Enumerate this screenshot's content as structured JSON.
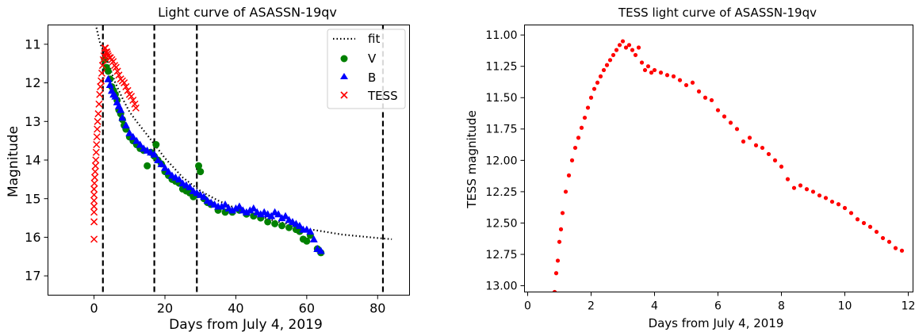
{
  "chart_data": [
    {
      "type": "scatter",
      "title": "Light curve of ASASSN-19qv",
      "xlabel": "Days from July 4, 2019",
      "ylabel": "Magnitude",
      "xlim": [
        -13,
        89
      ],
      "ylim": [
        17.5,
        10.5
      ],
      "y_inverted": true,
      "xticks": [
        0,
        20,
        40,
        60,
        80
      ],
      "yticks": [
        11,
        12,
        13,
        14,
        15,
        16,
        17
      ],
      "grid": false,
      "legend_position": "top-right",
      "legend": [
        {
          "label": "fit",
          "marker": "dotted-line",
          "color": "#000000"
        },
        {
          "label": "V",
          "marker": "circle",
          "color": "#008000"
        },
        {
          "label": "B",
          "marker": "triangle",
          "color": "#0000ff"
        },
        {
          "label": "TESS",
          "marker": "x",
          "color": "#ff0000"
        }
      ],
      "vlines": [
        2.5,
        17,
        29,
        81.5
      ],
      "series": [
        {
          "name": "fit",
          "kind": "dotted-line",
          "color": "#000000",
          "x": [
            0,
            0.5,
            1,
            1.5,
            2,
            2.5,
            3,
            4,
            5,
            6,
            7,
            8,
            10,
            12,
            15,
            20,
            25,
            30,
            35,
            40,
            50,
            60,
            70,
            80,
            84
          ],
          "y": [
            10.3,
            10.5,
            10.7,
            10.9,
            11.05,
            11.15,
            11.25,
            11.5,
            11.75,
            12.0,
            12.2,
            12.4,
            12.75,
            13.0,
            13.35,
            13.95,
            14.45,
            14.8,
            15.05,
            15.25,
            15.55,
            15.78,
            15.93,
            16.02,
            16.05
          ]
        },
        {
          "name": "V",
          "kind": "circle",
          "color": "#008000",
          "x": [
            3,
            3.5,
            4,
            4.5,
            5,
            5.5,
            6,
            6.5,
            7,
            7.5,
            8,
            8.5,
            9,
            10,
            11,
            12,
            13,
            14,
            15,
            16,
            17,
            17.5,
            18,
            19,
            20,
            21,
            22,
            23,
            24,
            25,
            26,
            27,
            28,
            29,
            29.5,
            30,
            31,
            32,
            33,
            35,
            37,
            39,
            41,
            43,
            45,
            47,
            49,
            51,
            53,
            55,
            57,
            58,
            59,
            60,
            61,
            63,
            64
          ],
          "y": [
            11.4,
            11.6,
            11.7,
            11.9,
            12.1,
            12.2,
            12.3,
            12.45,
            12.7,
            12.8,
            12.95,
            13.1,
            13.2,
            13.4,
            13.5,
            13.6,
            13.7,
            13.75,
            14.15,
            13.8,
            13.9,
            13.6,
            14.0,
            14.1,
            14.3,
            14.4,
            14.5,
            14.55,
            14.6,
            14.75,
            14.8,
            14.85,
            14.95,
            14.9,
            14.15,
            14.3,
            15.0,
            15.1,
            15.15,
            15.3,
            15.35,
            15.35,
            15.3,
            15.4,
            15.45,
            15.5,
            15.6,
            15.65,
            15.7,
            15.75,
            15.8,
            15.85,
            16.05,
            16.1,
            15.95,
            16.3,
            16.4
          ]
        },
        {
          "name": "B",
          "kind": "triangle",
          "color": "#0000ff",
          "x": [
            4,
            4.5,
            5,
            5.5,
            6,
            6.5,
            7,
            7.5,
            8,
            9,
            10,
            11,
            12,
            13,
            14,
            15,
            16,
            17,
            18,
            19,
            20,
            21,
            22,
            23,
            24,
            25,
            26,
            27,
            28,
            29,
            30,
            31,
            32,
            33,
            34,
            35,
            36,
            37,
            38,
            39,
            40,
            41,
            42,
            43,
            44,
            45,
            46,
            47,
            48,
            49,
            50,
            51,
            52,
            53,
            54,
            55,
            56,
            57,
            58,
            59,
            60,
            61,
            62,
            63,
            64
          ],
          "y": [
            11.9,
            12.05,
            12.2,
            12.3,
            12.35,
            12.5,
            12.6,
            12.7,
            12.9,
            13.1,
            13.3,
            13.4,
            13.5,
            13.6,
            13.7,
            13.75,
            13.8,
            13.85,
            14.0,
            14.1,
            14.2,
            14.3,
            14.4,
            14.45,
            14.5,
            14.6,
            14.65,
            14.7,
            14.8,
            14.85,
            14.9,
            14.95,
            15.05,
            15.1,
            15.15,
            15.2,
            15.2,
            15.15,
            15.25,
            15.3,
            15.25,
            15.2,
            15.3,
            15.35,
            15.3,
            15.25,
            15.35,
            15.4,
            15.35,
            15.4,
            15.45,
            15.35,
            15.4,
            15.5,
            15.45,
            15.55,
            15.6,
            15.65,
            15.7,
            15.8,
            15.8,
            15.85,
            16.05,
            16.3,
            16.35
          ]
        },
        {
          "name": "TESS",
          "kind": "x",
          "color": "#ff0000",
          "x": [
            0,
            0,
            0,
            0,
            0,
            0,
            0,
            0.1,
            0.2,
            0.3,
            0.4,
            0.5,
            0.6,
            0.7,
            0.8,
            0.9,
            1.0,
            1.2,
            1.4,
            1.6,
            1.8,
            2.0,
            2.2,
            2.4,
            2.6,
            2.8,
            3.0,
            3.2,
            3.4,
            3.6,
            3.8,
            4.0,
            4.3,
            4.6,
            5.0,
            5.4,
            5.8,
            6.2,
            6.6,
            7.0,
            7.5,
            8.0,
            8.5,
            9.0,
            9.5,
            10.0,
            10.5,
            11.0,
            11.5,
            11.8
          ],
          "y": [
            16.05,
            15.6,
            15.35,
            15.2,
            15.05,
            14.9,
            14.75,
            14.6,
            14.45,
            14.3,
            14.15,
            14.0,
            13.8,
            13.6,
            13.4,
            13.2,
            13.0,
            12.8,
            12.55,
            12.3,
            12.1,
            11.95,
            11.75,
            11.55,
            11.4,
            11.3,
            11.1,
            11.1,
            11.2,
            11.2,
            11.25,
            11.3,
            11.35,
            11.35,
            11.4,
            11.45,
            11.55,
            11.6,
            11.7,
            11.8,
            11.9,
            11.95,
            12.0,
            12.1,
            12.2,
            12.3,
            12.35,
            12.45,
            12.55,
            12.65
          ]
        }
      ]
    },
    {
      "type": "scatter",
      "title": "TESS light curve of ASASSN-19qv",
      "xlabel": "Days from July 4, 2019",
      "ylabel": "TESS magnitude",
      "xlim": [
        -0.1,
        12.15
      ],
      "ylim": [
        13.05,
        10.92
      ],
      "y_inverted": true,
      "xticks": [
        0,
        2,
        4,
        6,
        8,
        10,
        12
      ],
      "yticks": [
        11.0,
        11.25,
        11.5,
        11.75,
        12.0,
        12.25,
        12.5,
        12.75,
        13.0
      ],
      "ytick_labels": [
        "11.00",
        "11.25",
        "11.50",
        "11.75",
        "12.00",
        "12.25",
        "12.50",
        "12.75",
        "13.00"
      ],
      "grid": false,
      "series": [
        {
          "kind": "dot",
          "color": "#ff0000",
          "x": [
            0.85,
            0.9,
            0.95,
            1.0,
            1.05,
            1.1,
            1.2,
            1.3,
            1.4,
            1.5,
            1.6,
            1.7,
            1.8,
            1.9,
            2.0,
            2.1,
            2.2,
            2.3,
            2.4,
            2.5,
            2.6,
            2.7,
            2.8,
            2.9,
            3.0,
            3.1,
            3.2,
            3.3,
            3.4,
            3.5,
            3.6,
            3.7,
            3.8,
            3.9,
            4.0,
            4.2,
            4.4,
            4.6,
            4.8,
            5.0,
            5.2,
            5.4,
            5.6,
            5.8,
            6.0,
            6.2,
            6.4,
            6.6,
            6.8,
            7.0,
            7.2,
            7.4,
            7.6,
            7.8,
            8.0,
            8.2,
            8.4,
            8.6,
            8.8,
            9.0,
            9.2,
            9.4,
            9.6,
            9.8,
            10.0,
            10.2,
            10.4,
            10.6,
            10.8,
            11.0,
            11.2,
            11.4,
            11.6,
            11.8
          ],
          "y": [
            13.05,
            12.9,
            12.8,
            12.65,
            12.55,
            12.42,
            12.25,
            12.12,
            12.0,
            11.9,
            11.82,
            11.74,
            11.66,
            11.58,
            11.5,
            11.43,
            11.38,
            11.33,
            11.28,
            11.24,
            11.2,
            11.16,
            11.12,
            11.08,
            11.05,
            11.1,
            11.08,
            11.12,
            11.16,
            11.1,
            11.22,
            11.28,
            11.25,
            11.3,
            11.28,
            11.3,
            11.32,
            11.33,
            11.36,
            11.4,
            11.38,
            11.45,
            11.5,
            11.52,
            11.6,
            11.65,
            11.7,
            11.75,
            11.85,
            11.82,
            11.88,
            11.9,
            11.95,
            12.0,
            12.05,
            12.15,
            12.22,
            12.2,
            12.23,
            12.25,
            12.28,
            12.3,
            12.33,
            12.35,
            12.38,
            12.42,
            12.47,
            12.5,
            12.53,
            12.57,
            12.62,
            12.65,
            12.7,
            12.72
          ]
        }
      ]
    }
  ]
}
